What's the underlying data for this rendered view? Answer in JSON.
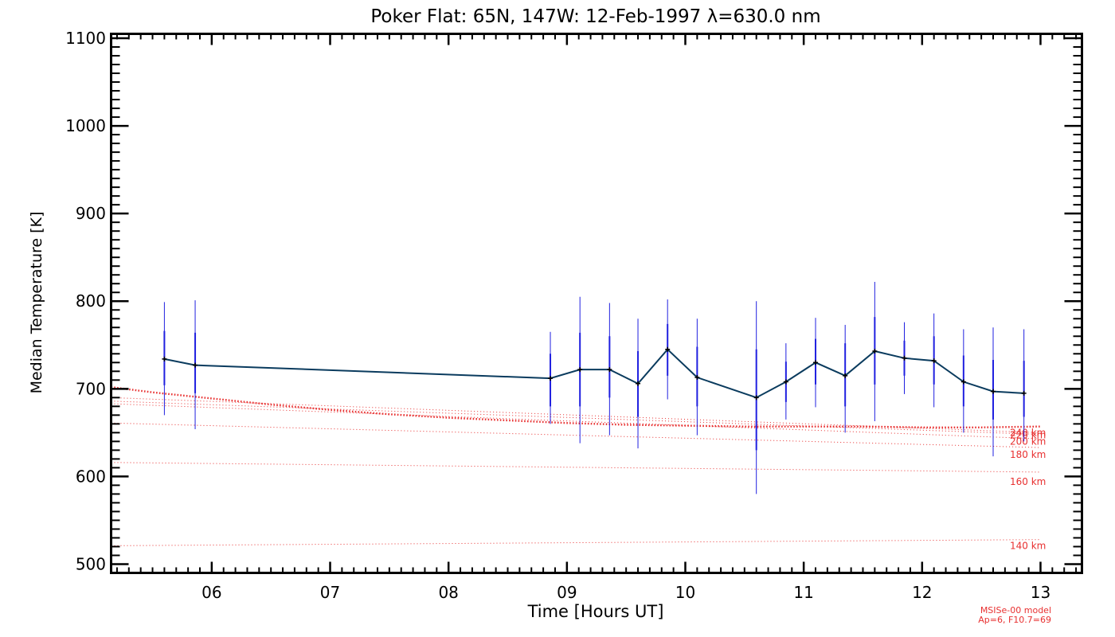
{
  "chart_data": {
    "type": "line",
    "title": "Poker Flat: 65N, 147W: 12-Feb-1997 λ=630.0 nm",
    "xlabel": "Time [Hours UT]",
    "ylabel": "Median Temperature [K]",
    "xlim": [
      5.15,
      13.35
    ],
    "ylim": [
      490,
      1105
    ],
    "xticks": [
      6,
      7,
      8,
      9,
      10,
      11,
      12,
      13
    ],
    "xtick_labels": [
      "06",
      "07",
      "08",
      "09",
      "10",
      "11",
      "12",
      "13"
    ],
    "yticks": [
      500,
      600,
      700,
      800,
      900,
      1000,
      1100
    ],
    "ytick_labels": [
      "500",
      "600",
      "700",
      "800",
      "900",
      "1000",
      "1100"
    ],
    "grid": false,
    "series": [
      {
        "color": "#0a3b5e",
        "error_bar_color": "#2020e0",
        "x": [
          5.6,
          5.86,
          8.86,
          9.11,
          9.36,
          9.6,
          9.85,
          10.1,
          10.6,
          10.85,
          11.1,
          11.35,
          11.6,
          11.85,
          12.1,
          12.35,
          12.6,
          12.86
        ],
        "y": [
          734,
          727,
          712,
          722,
          722,
          706,
          745,
          713,
          690,
          708,
          730,
          715,
          743,
          735,
          732,
          708,
          697,
          695
        ],
        "err_inner_low": [
          704,
          695,
          680,
          680,
          690,
          668,
          715,
          680,
          630,
          685,
          705,
          680,
          705,
          715,
          705,
          680,
          665,
          668
        ],
        "err_inner_high": [
          766,
          764,
          740,
          764,
          760,
          743,
          774,
          748,
          745,
          731,
          757,
          752,
          782,
          755,
          760,
          738,
          733,
          732
        ],
        "err_outer_low": [
          670,
          654,
          660,
          638,
          647,
          632,
          688,
          647,
          580,
          665,
          679,
          650,
          663,
          694,
          679,
          650,
          623,
          640
        ],
        "err_outer_high": [
          799,
          801,
          765,
          805,
          798,
          780,
          802,
          780,
          800,
          752,
          781,
          773,
          822,
          776,
          786,
          768,
          770,
          768
        ]
      }
    ],
    "model_color": "#e83030",
    "model_curve": {
      "x": [
        5.15,
        5.5,
        6.0,
        6.5,
        7.0,
        7.5,
        8.0,
        8.5,
        9.0,
        9.5,
        10.0,
        10.5,
        11.0,
        11.5,
        12.0,
        12.5,
        13.0
      ],
      "y": [
        702,
        696,
        689,
        682,
        676,
        671,
        667,
        664,
        661,
        659,
        658,
        657,
        657,
        657,
        656,
        656,
        657
      ]
    },
    "model_altitudes": [
      {
        "label": "240 km",
        "x": [
          5.15,
          13.0
        ],
        "y": [
          690,
          650
        ]
      },
      {
        "label": "220 km",
        "x": [
          5.15,
          13.0
        ],
        "y": [
          686,
          648
        ]
      },
      {
        "label": "200 km",
        "x": [
          5.15,
          13.0
        ],
        "y": [
          683,
          643
        ]
      },
      {
        "label": "180 km",
        "x": [
          5.15,
          13.0
        ],
        "y": [
          661,
          633
        ]
      },
      {
        "label": "160 km",
        "x": [
          5.15,
          13.0
        ],
        "y": [
          616,
          605
        ]
      },
      {
        "label": "140 km",
        "x": [
          5.15,
          13.0
        ],
        "y": [
          521,
          528
        ]
      }
    ],
    "model_altitude_labels": [
      {
        "text": "240 km",
        "y": 650
      },
      {
        "text": "220 km",
        "y": 647
      },
      {
        "text": "200 km",
        "y": 640
      },
      {
        "text": "180 km",
        "y": 625
      },
      {
        "text": "160 km",
        "y": 594
      },
      {
        "text": "140 km",
        "y": 521
      }
    ],
    "model_note": [
      "MSISe-00 model",
      "Ap=6, F10.7=69"
    ]
  }
}
